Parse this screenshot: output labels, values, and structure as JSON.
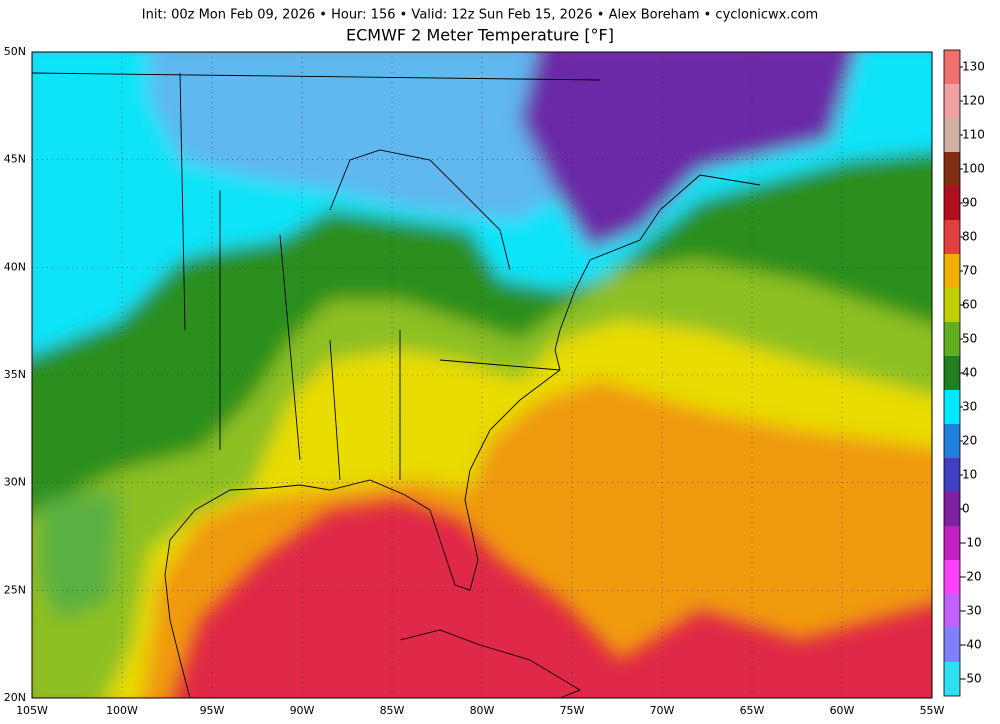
{
  "header": {
    "info": "Init: 00z Mon Feb 09, 2026  •  Hour: 156  •  Valid: 12z Sun Feb 15, 2026  •  Alex Boreham  •  cyclonicwx.com",
    "title": "ECMWF 2 Meter Temperature [°F]"
  },
  "map": {
    "lat_labels": [
      "50N",
      "45N",
      "40N",
      "35N",
      "30N",
      "25N",
      "20N"
    ],
    "lon_labels": [
      "105W",
      "100W",
      "95W",
      "90W",
      "85W",
      "80W",
      "75W",
      "70W",
      "65W",
      "60W",
      "55W"
    ]
  },
  "colorbar": {
    "ticks": [
      -50,
      -40,
      -30,
      -20,
      -10,
      0,
      10,
      20,
      30,
      40,
      50,
      60,
      70,
      80,
      90,
      100,
      110,
      120,
      130
    ],
    "colors": [
      "#30e0f0",
      "#8080ff",
      "#c060ff",
      "#ff40ff",
      "#c020c0",
      "#8020a0",
      "#4040c0",
      "#2080e0",
      "#00e8ff",
      "#208020",
      "#60b020",
      "#c0d000",
      "#f0b000",
      "#e04040",
      "#b01020",
      "#803010",
      "#d0b0a0",
      "#f0a0a0",
      "#f07070"
    ]
  }
}
